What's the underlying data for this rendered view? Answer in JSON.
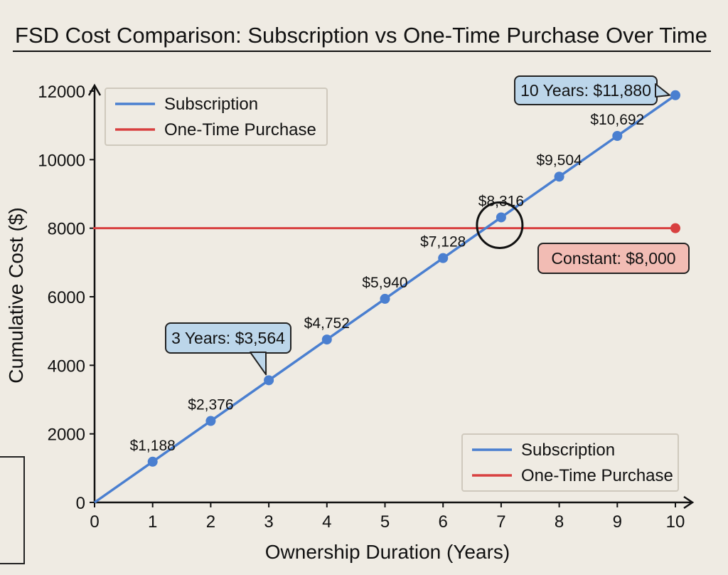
{
  "colors": {
    "subscription": "#4a7fd0",
    "one_time": "#d84040",
    "callout_blue_fill": "#bcd6ea",
    "callout_red_fill": "#f2bcb4",
    "background": "#efebe3"
  },
  "chart_data": {
    "type": "line",
    "title": "FSD Cost Comparison: Subscription vs One-Time Purchase Over Time",
    "xlabel": "Ownership Duration (Years)",
    "ylabel": "Cumulative Cost ($)",
    "xlim": [
      0,
      10
    ],
    "ylim": [
      0,
      12000
    ],
    "x_ticks": [
      "0",
      "1",
      "2",
      "3",
      "4",
      "5",
      "6",
      "7",
      "8",
      "9",
      "10"
    ],
    "y_ticks": [
      "0",
      "2000",
      "4000",
      "6000",
      "8000",
      "10000",
      "12000"
    ],
    "grid": false,
    "series": [
      {
        "name": "Subscription",
        "x": [
          0,
          1,
          2,
          3,
          4,
          5,
          6,
          7,
          8,
          9,
          10
        ],
        "y": [
          0,
          1188,
          2376,
          3564,
          4752,
          5940,
          7128,
          8316,
          9504,
          10692,
          11880
        ],
        "point_labels": [
          "",
          "$1,188",
          "$2,376",
          "",
          "$4,752",
          "$5,940",
          "$7,128",
          "$8,316",
          "$9,504",
          "$10,692",
          ""
        ]
      },
      {
        "name": "One-Time Purchase",
        "x": [
          0,
          10
        ],
        "y": [
          8000,
          8000
        ]
      }
    ],
    "callouts": [
      {
        "text": "3 Years: $3,564",
        "series": "Subscription"
      },
      {
        "text": "10 Years: $11,880",
        "series": "Subscription"
      },
      {
        "text": "Constant: $8,000",
        "series": "One-Time Purchase"
      }
    ],
    "legends": [
      {
        "placement": "top-left",
        "entries": [
          "Subscription",
          "One-Time Purchase"
        ]
      },
      {
        "placement": "bottom-right",
        "entries": [
          "Subscription",
          "One-Time Purchase"
        ]
      }
    ],
    "highlight": {
      "type": "circle",
      "near_x": 7,
      "near_y": 8316
    }
  }
}
